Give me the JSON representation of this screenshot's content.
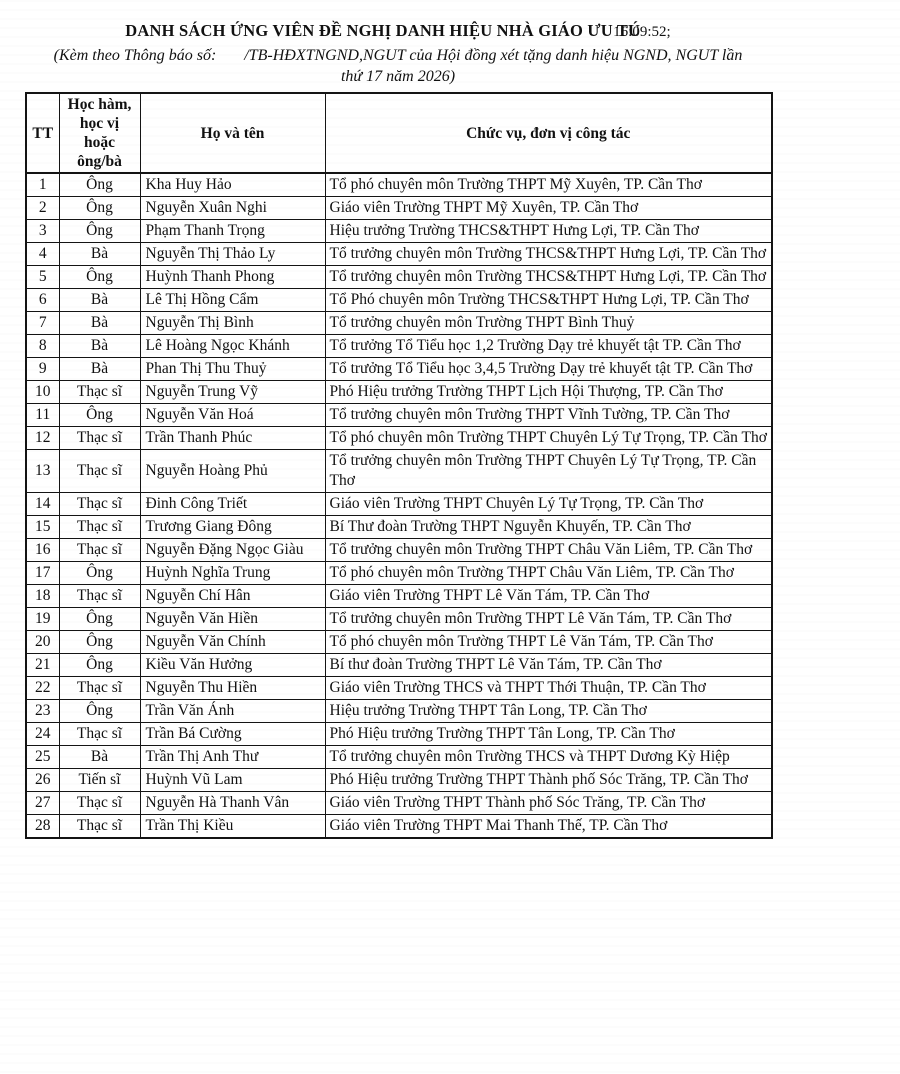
{
  "header": {
    "title": "DANH SÁCH ỨNG VIÊN ĐỀ NGHỊ DANH HIỆU NHÀ GIÁO ƯU TÚ",
    "print_artifact": "16:09:52;",
    "subtitle": "(Kèm theo Thông báo số:       /TB-HĐXTNGND,NGUT của Hội đồng xét tặng danh hiệu NGND, NGUT lần\nthứ 17 năm 2026)"
  },
  "table": {
    "columns": [
      "TT",
      "Học hàm,\nhọc vị\nhoặc\nông/bà",
      "Họ và tên",
      "Chức vụ, đơn vị công tác"
    ],
    "rows": [
      [
        "1",
        "Ông",
        "Kha Huy Hảo",
        "Tổ phó chuyên môn Trường THPT Mỹ Xuyên, TP. Cần Thơ"
      ],
      [
        "2",
        "Ông",
        "Nguyễn Xuân Nghi",
        "Giáo viên Trường THPT Mỹ Xuyên, TP. Cần Thơ"
      ],
      [
        "3",
        "Ông",
        "Phạm Thanh Trọng",
        "Hiệu trưởng Trường THCS&THPT Hưng Lợi, TP. Cần Thơ"
      ],
      [
        "4",
        "Bà",
        "Nguyễn Thị Thảo Ly",
        "Tổ trưởng chuyên môn Trường THCS&THPT Hưng Lợi, TP. Cần Thơ"
      ],
      [
        "5",
        "Ông",
        "Huỳnh Thanh Phong",
        "Tổ trưởng chuyên môn Trường THCS&THPT Hưng Lợi, TP. Cần Thơ"
      ],
      [
        "6",
        "Bà",
        "Lê Thị Hồng Cẩm",
        "Tổ Phó chuyên môn Trường THCS&THPT Hưng Lợi, TP. Cần Thơ"
      ],
      [
        "7",
        "Bà",
        "Nguyễn Thị Bình",
        "Tổ trưởng chuyên môn Trường THPT Bình Thuỷ"
      ],
      [
        "8",
        "Bà",
        "Lê Hoàng Ngọc Khánh",
        "Tổ trưởng Tổ Tiểu học 1,2 Trường Dạy trẻ khuyết tật TP. Cần Thơ"
      ],
      [
        "9",
        "Bà",
        "Phan Thị Thu Thuỷ",
        "Tổ trưởng Tổ Tiểu học 3,4,5 Trường Dạy trẻ khuyết tật TP. Cần Thơ"
      ],
      [
        "10",
        "Thạc sĩ",
        "Nguyễn Trung Vỹ",
        "Phó Hiệu trưởng Trường THPT Lịch Hội Thượng, TP. Cần Thơ"
      ],
      [
        "11",
        "Ông",
        "Nguyễn Văn  Hoá",
        "Tổ trưởng chuyên môn Trường THPT Vĩnh Tường, TP. Cần Thơ"
      ],
      [
        "12",
        "Thạc sĩ",
        "Trần Thanh Phúc",
        "Tổ phó chuyên môn Trường THPT Chuyên Lý Tự Trọng, TP. Cần Thơ"
      ],
      [
        "13",
        "Thạc sĩ",
        "Nguyễn Hoàng Phủ",
        "Tổ trưởng chuyên môn Trường THPT Chuyên Lý Tự Trọng, TP. Cần Thơ"
      ],
      [
        "14",
        "Thạc sĩ",
        "Đinh Công Triết",
        "Giáo viên Trường THPT Chuyên Lý Tự Trọng, TP. Cần Thơ"
      ],
      [
        "15",
        "Thạc sĩ",
        "Trương Giang Đông",
        "Bí Thư đoàn Trường THPT Nguyễn Khuyến, TP. Cần Thơ"
      ],
      [
        "16",
        "Thạc sĩ",
        "Nguyễn Đặng Ngọc Giàu",
        "Tổ trưởng chuyên môn Trường THPT Châu Văn Liêm, TP. Cần Thơ"
      ],
      [
        "17",
        "Ông",
        "Huỳnh Nghĩa Trung",
        "Tổ phó chuyên môn Trường THPT Châu Văn Liêm, TP. Cần Thơ"
      ],
      [
        "18",
        "Thạc sĩ",
        "Nguyễn Chí Hân",
        "Giáo viên Trường THPT Lê Văn Tám, TP. Cần Thơ"
      ],
      [
        "19",
        "Ông",
        "Nguyễn Văn Hiền",
        "Tổ trưởng chuyên môn Trường THPT Lê Văn Tám, TP. Cần Thơ"
      ],
      [
        "20",
        "Ông",
        "Nguyễn Văn Chính",
        "Tổ phó chuyên môn Trường THPT Lê Văn Tám, TP. Cần Thơ"
      ],
      [
        "21",
        "Ông",
        "Kiều Văn Hưởng",
        "Bí thư đoàn Trường THPT Lê Văn Tám, TP. Cần Thơ"
      ],
      [
        "22",
        "Thạc sĩ",
        "Nguyễn Thu Hiền",
        "Giáo viên Trường THCS và THPT Thới Thuận, TP. Cần Thơ"
      ],
      [
        "23",
        "Ông",
        "Trần Văn Ánh",
        "Hiệu trưởng Trường THPT Tân Long, TP. Cần Thơ"
      ],
      [
        "24",
        "Thạc sĩ",
        "Trần Bá Cường",
        "Phó Hiệu trưởng Trường THPT Tân Long, TP. Cần Thơ"
      ],
      [
        "25",
        "Bà",
        "Trần Thị Anh Thư",
        "Tổ trưởng chuyên môn Trường THCS và THPT Dương Kỳ Hiệp"
      ],
      [
        "26",
        "Tiến sĩ",
        "Huỳnh Vũ Lam",
        "Phó Hiệu trưởng Trường THPT Thành phố Sóc Trăng, TP. Cần Thơ"
      ],
      [
        "27",
        "Thạc sĩ",
        "Nguyễn Hà Thanh Vân",
        "Giáo viên Trường THPT Thành phố Sóc Trăng, TP. Cần Thơ"
      ],
      [
        "28",
        "Thạc sĩ",
        "Trần Thị Kiều",
        "Giáo viên Trường THPT Mai Thanh Thế, TP. Cần Thơ"
      ]
    ]
  }
}
